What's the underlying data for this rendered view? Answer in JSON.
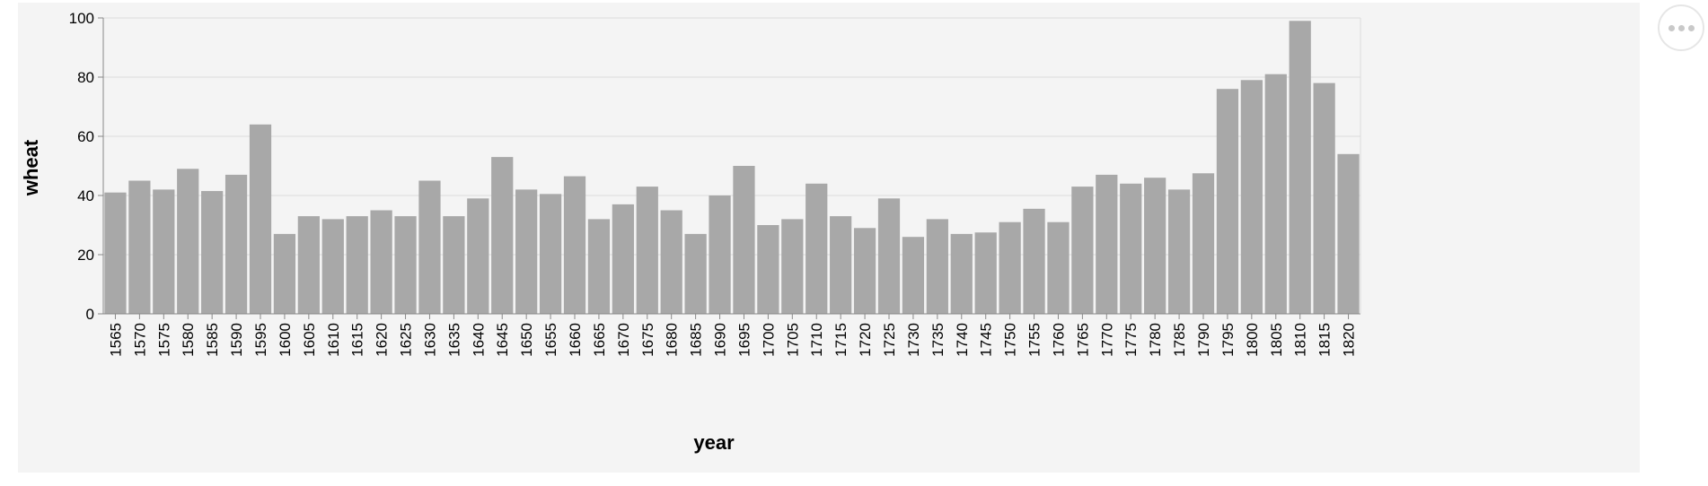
{
  "chart_data": {
    "type": "bar",
    "title": "",
    "xlabel": "year",
    "ylabel": "wheat",
    "ylim": [
      0,
      100
    ],
    "yticks": [
      0,
      20,
      40,
      60,
      80,
      100
    ],
    "grid": true,
    "bar_color": "#a8a8a8",
    "background_color": "#f4f4f4",
    "categories": [
      "1565",
      "1570",
      "1575",
      "1580",
      "1585",
      "1590",
      "1595",
      "1600",
      "1605",
      "1610",
      "1615",
      "1620",
      "1625",
      "1630",
      "1635",
      "1640",
      "1645",
      "1650",
      "1655",
      "1660",
      "1665",
      "1670",
      "1675",
      "1680",
      "1685",
      "1690",
      "1695",
      "1700",
      "1705",
      "1710",
      "1715",
      "1720",
      "1725",
      "1730",
      "1735",
      "1740",
      "1745",
      "1750",
      "1755",
      "1760",
      "1765",
      "1770",
      "1775",
      "1780",
      "1785",
      "1790",
      "1795",
      "1800",
      "1805",
      "1810",
      "1815",
      "1820"
    ],
    "values": [
      41,
      45,
      42,
      49,
      41.5,
      47,
      64,
      27,
      33,
      32,
      33,
      35,
      33,
      45,
      33,
      39,
      53,
      42,
      40.5,
      46.5,
      32,
      37,
      43,
      35,
      27,
      40,
      50,
      30,
      32,
      44,
      33,
      29,
      39,
      26,
      32,
      27,
      27.5,
      31,
      35.5,
      31,
      43,
      47,
      44,
      46,
      42,
      47.5,
      76,
      79,
      81,
      99,
      78,
      54
    ]
  },
  "toolbar": {
    "actions_icon": "more-horizontal-icon"
  }
}
